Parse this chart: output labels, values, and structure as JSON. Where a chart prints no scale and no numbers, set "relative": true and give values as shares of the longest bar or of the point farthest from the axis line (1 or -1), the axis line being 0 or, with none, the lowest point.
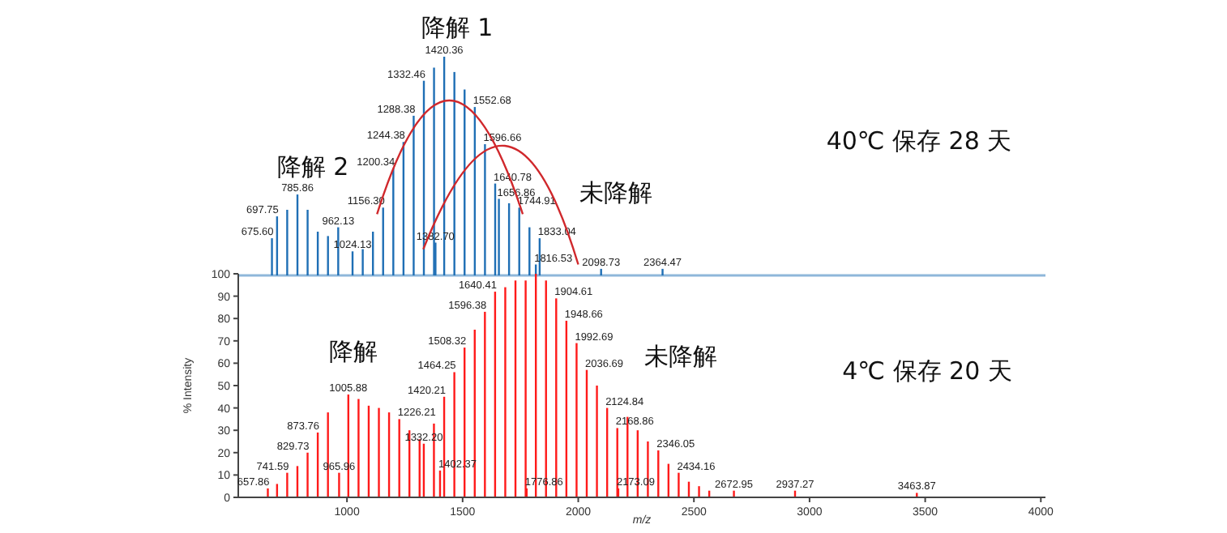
{
  "chart_data": [
    {
      "type": "bar",
      "relative": true,
      "color": "#1f6fb5",
      "xlim": [
        530,
        4020
      ],
      "x": [
        675.6,
        697.75,
        741.6,
        785.86,
        829.8,
        873.8,
        917.9,
        962.13,
        1024.13,
        1068.2,
        1112.3,
        1156.3,
        1200.34,
        1244.38,
        1288.38,
        1332.46,
        1376.4,
        1382.7,
        1420.36,
        1464.4,
        1508.5,
        1552.68,
        1596.66,
        1640.78,
        1656.86,
        1700.8,
        1744.91,
        1789,
        1816.53,
        1833.04,
        2098.73,
        2364.47
      ],
      "values": [
        0.17,
        0.27,
        0.3,
        0.37,
        0.3,
        0.2,
        0.18,
        0.22,
        0.11,
        0.12,
        0.2,
        0.31,
        0.49,
        0.61,
        0.73,
        0.89,
        0.95,
        0.15,
        1,
        0.93,
        0.85,
        0.77,
        0.6,
        0.42,
        0.35,
        0.33,
        0.31,
        0.22,
        0.05,
        0.17,
        0.03,
        0.03
      ],
      "annotations": [
        "降解 1",
        "降解 2",
        "未降解",
        "40℃ 保存 28 天",
        {
          "text": "675.60",
          "x": 675.6,
          "y": 0.17
        },
        {
          "text": "697.75",
          "x": 697.75,
          "y": 0.27
        },
        {
          "text": "785.86",
          "x": 785.86,
          "y": 0.37
        },
        {
          "text": "962.13",
          "x": 962.13,
          "y": 0.22
        },
        {
          "text": "1024.13",
          "x": 1024.13,
          "y": 0.11
        },
        {
          "text": "1156.30",
          "x": 1156.3,
          "y": 0.31
        },
        {
          "text": "1200.34",
          "x": 1200.34,
          "y": 0.49
        },
        {
          "text": "1244.38",
          "x": 1244.38,
          "y": 0.61
        },
        {
          "text": "1288.38",
          "x": 1288.38,
          "y": 0.73
        },
        {
          "text": "1332.46",
          "x": 1332.46,
          "y": 0.89
        },
        {
          "text": "1382.70",
          "x": 1382.7,
          "y": 0.15
        },
        {
          "text": "1420.36",
          "x": 1420.36,
          "y": 1
        },
        {
          "text": "1552.68",
          "x": 1552.68,
          "y": 0.77
        },
        {
          "text": "1596.66",
          "x": 1596.66,
          "y": 0.6
        },
        {
          "text": "1640.78",
          "x": 1640.78,
          "y": 0.42
        },
        {
          "text": "1656.86",
          "x": 1656.86,
          "y": 0.35
        },
        {
          "text": "1744.91",
          "x": 1744.91,
          "y": 0.31
        },
        {
          "text": "1816.53",
          "x": 1816.53,
          "y": 0.05
        },
        {
          "text": "1833.04",
          "x": 1833.04,
          "y": 0.17
        },
        {
          "text": "2098.73",
          "x": 2098.73,
          "y": 0.03
        },
        {
          "text": "2364.47",
          "x": 2364.47,
          "y": 0.03
        }
      ]
    },
    {
      "type": "bar",
      "color": "#ff1a1a",
      "xlim": [
        530,
        4020
      ],
      "ylim": [
        0,
        100
      ],
      "yticks": [
        0,
        10,
        20,
        30,
        40,
        50,
        60,
        70,
        80,
        90,
        100
      ],
      "xticks": [
        1000,
        1500,
        2000,
        2500,
        3000,
        3500,
        4000
      ],
      "xlabel": "m/z",
      "ylabel": "% Intensity",
      "x": [
        657.86,
        697.7,
        741.59,
        785.7,
        829.73,
        873.76,
        917.8,
        965.96,
        1005.88,
        1050,
        1094,
        1138,
        1182,
        1226.21,
        1270,
        1314,
        1332.2,
        1376,
        1402.37,
        1420.21,
        1464.25,
        1508.32,
        1552.4,
        1596.38,
        1640.41,
        1684.4,
        1728.5,
        1772.5,
        1776.86,
        1816.6,
        1860.6,
        1904.61,
        1948.66,
        1992.69,
        2036.69,
        2080.7,
        2124.84,
        2168.86,
        2173.09,
        2212.9,
        2256.9,
        2301,
        2346.05,
        2390.1,
        2434.16,
        2478.2,
        2522.2,
        2566.3,
        2672.95,
        2937.27,
        3463.87
      ],
      "values": [
        4,
        6,
        11,
        14,
        20,
        29,
        38,
        11,
        46,
        44,
        41,
        40,
        38,
        35,
        30,
        26,
        24,
        33,
        12,
        45,
        56,
        67,
        75,
        83,
        92,
        94,
        97,
        97,
        4,
        100,
        97,
        89,
        79,
        69,
        57,
        50,
        40,
        31,
        4,
        36,
        30,
        25,
        21,
        15,
        11,
        7,
        5,
        3,
        3,
        3,
        2
      ],
      "annotations": [
        "降解",
        "未降解",
        "4℃ 保存 20 天",
        {
          "text": "657.86",
          "x": 657.86,
          "y": 4
        },
        {
          "text": "741.59",
          "x": 741.59,
          "y": 11
        },
        {
          "text": "829.73",
          "x": 829.73,
          "y": 20
        },
        {
          "text": "873.76",
          "x": 873.76,
          "y": 29
        },
        {
          "text": "965.96",
          "x": 965.96,
          "y": 11
        },
        {
          "text": "1005.88",
          "x": 1005.88,
          "y": 46
        },
        {
          "text": "1226.21",
          "x": 1226.21,
          "y": 35
        },
        {
          "text": "1332.20",
          "x": 1332.2,
          "y": 24
        },
        {
          "text": "1402.37",
          "x": 1402.37,
          "y": 12
        },
        {
          "text": "1420.21",
          "x": 1420.21,
          "y": 45
        },
        {
          "text": "1464.25",
          "x": 1464.25,
          "y": 56
        },
        {
          "text": "1508.32",
          "x": 1508.32,
          "y": 67
        },
        {
          "text": "1596.38",
          "x": 1596.38,
          "y": 83
        },
        {
          "text": "1640.41",
          "x": 1640.41,
          "y": 92
        },
        {
          "text": "1776.86",
          "x": 1776.86,
          "y": 4
        },
        {
          "text": "1904.61",
          "x": 1904.61,
          "y": 89
        },
        {
          "text": "1948.66",
          "x": 1948.66,
          "y": 79
        },
        {
          "text": "1992.69",
          "x": 1992.69,
          "y": 69
        },
        {
          "text": "2036.69",
          "x": 2036.69,
          "y": 57
        },
        {
          "text": "2124.84",
          "x": 2124.84,
          "y": 40
        },
        {
          "text": "2168.86",
          "x": 2168.86,
          "y": 31
        },
        {
          "text": "2173.09",
          "x": 2173.09,
          "y": 4
        },
        {
          "text": "2346.05",
          "x": 2346.05,
          "y": 21
        },
        {
          "text": "2434.16",
          "x": 2434.16,
          "y": 11
        },
        {
          "text": "2672.95",
          "x": 2672.95,
          "y": 3
        },
        {
          "text": "2937.27",
          "x": 2937.27,
          "y": 3
        },
        {
          "text": "3463.87",
          "x": 3463.87,
          "y": 2
        }
      ]
    }
  ]
}
